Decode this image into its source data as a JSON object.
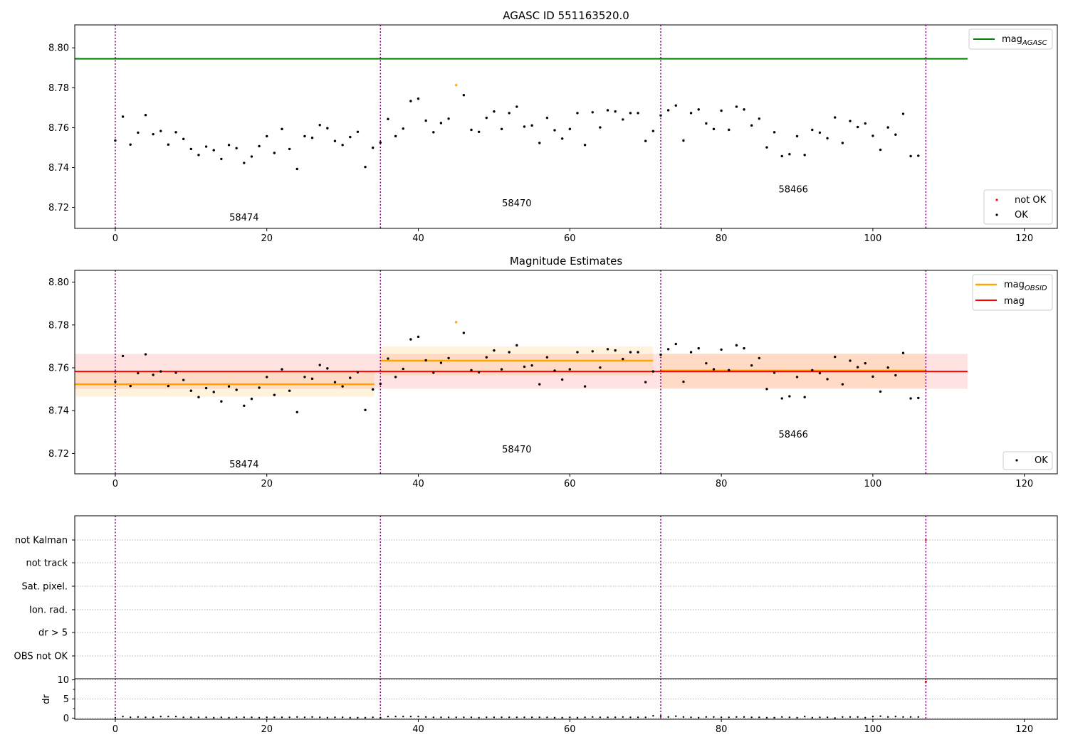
{
  "chart_data": [
    {
      "type": "scatter",
      "title": "AGASC ID 551163520.0",
      "xlim": [
        -5.35,
        124.35
      ],
      "ylim": [
        8.7095,
        8.8115
      ],
      "x_ticks": [
        "0",
        "20",
        "40",
        "60",
        "80",
        "100",
        "120"
      ],
      "y_ticks": [
        "8.72",
        "8.74",
        "8.76",
        "8.78",
        "8.80"
      ],
      "obs_boundaries": [
        0,
        35,
        72,
        107
      ],
      "obsid_labels": [
        {
          "text": "58474",
          "x": 17,
          "y": 8.7135
        },
        {
          "text": "58470",
          "x": 53,
          "y": 8.7205
        },
        {
          "text": "58466",
          "x": 89.5,
          "y": 8.7275
        }
      ],
      "lines": [
        {
          "name": "mag_AGASC",
          "color": "#008000",
          "y": 8.7945,
          "x": [
            -5.35,
            112.5
          ]
        }
      ],
      "series": [
        {
          "name": "not OK",
          "color": "#ff0000",
          "x": [],
          "y": []
        },
        {
          "name": "OK",
          "color": "#000000",
          "x": [
            0,
            1,
            2,
            3,
            4,
            5,
            6,
            7,
            8,
            9,
            10,
            11,
            12,
            13,
            14,
            15,
            16,
            17,
            18,
            19,
            20,
            21,
            22,
            23,
            24,
            25,
            26,
            27,
            28,
            29,
            30,
            31,
            32,
            33,
            34,
            35,
            36,
            37,
            38,
            39,
            40,
            41,
            42,
            43,
            44,
            46,
            47,
            48,
            49,
            50,
            51,
            52,
            53,
            54,
            55,
            56,
            57,
            58,
            59,
            60,
            61,
            62,
            63,
            64,
            65,
            66,
            67,
            68,
            69,
            70,
            71,
            72,
            73,
            74,
            75,
            76,
            77,
            78,
            79,
            80,
            81,
            82,
            83,
            84,
            85,
            86,
            87,
            88,
            89,
            90,
            91,
            92,
            93,
            94,
            95,
            96,
            97,
            98,
            99,
            100,
            101,
            102,
            103,
            104,
            105,
            106
          ],
          "y": [
            8.7535,
            8.7655,
            8.7515,
            8.7575,
            8.7663,
            8.7567,
            8.7583,
            8.7515,
            8.7577,
            8.7543,
            8.7493,
            8.7463,
            8.7505,
            8.7487,
            8.7443,
            8.7513,
            8.7497,
            8.7423,
            8.7455,
            8.7507,
            8.7557,
            8.7473,
            8.7593,
            8.7493,
            8.7393,
            8.7557,
            8.7549,
            8.7613,
            8.7597,
            8.7533,
            8.7513,
            8.7553,
            8.7579,
            8.7403,
            8.7499,
            8.7525,
            8.7643,
            8.7557,
            8.7595,
            8.7733,
            8.7745,
            8.7635,
            8.7577,
            8.7623,
            8.7645,
            8.7763,
            8.7589,
            8.7579,
            8.7649,
            8.7681,
            8.7593,
            8.7673,
            8.7705,
            8.7605,
            8.7611,
            8.7523,
            8.7649,
            8.7587,
            8.7545,
            8.7593,
            8.7673,
            8.7513,
            8.7677,
            8.7601,
            8.7687,
            8.7681,
            8.7641,
            8.7673,
            8.7673,
            8.7533,
            8.7583,
            8.7661,
            8.7687,
            8.7711,
            8.7535,
            8.7673,
            8.7691,
            8.7621,
            8.7593,
            8.7685,
            8.7589,
            8.7705,
            8.7691,
            8.7611,
            8.7645,
            8.7501,
            8.7577,
            8.7457,
            8.7467,
            8.7557,
            8.7463,
            8.7589,
            8.7575,
            8.7547,
            8.7651,
            8.7523,
            8.7633,
            8.7603,
            8.7621,
            8.7559,
            8.7489,
            8.7601,
            8.7565,
            8.7669,
            8.7457,
            8.7459
          ]
        },
        {
          "name": "mag_OBSID point",
          "color": "#ffa500",
          "x": [
            45
          ],
          "y": [
            8.7813
          ]
        }
      ]
    },
    {
      "type": "scatter",
      "title": "Magnitude Estimates",
      "xlim": [
        -5.35,
        124.35
      ],
      "ylim": [
        8.7105,
        8.8055
      ],
      "x_ticks": [
        "0",
        "20",
        "40",
        "60",
        "80",
        "100",
        "120"
      ],
      "y_ticks": [
        "8.72",
        "8.74",
        "8.76",
        "8.78",
        "8.80"
      ],
      "obs_boundaries": [
        0,
        35,
        72,
        107
      ],
      "obsid_labels": [
        {
          "text": "58474",
          "x": 17,
          "y": 8.7135
        },
        {
          "text": "58470",
          "x": 53,
          "y": 8.7205
        },
        {
          "text": "58466",
          "x": 89.5,
          "y": 8.7275
        }
      ],
      "lines": [
        {
          "name": "mag",
          "color": "#ff0000",
          "y": 8.7583,
          "x": [
            -5.35,
            112.5
          ],
          "band": [
            8.7502,
            8.7665
          ]
        },
        {
          "name": "mag_OBSID",
          "color": "#ffa500",
          "y": 8.7523,
          "x": [
            -5.35,
            34.2
          ],
          "band": [
            8.7465,
            8.7583
          ]
        },
        {
          "name": "mag_OBSID",
          "color": "#ffa500",
          "y": 8.7633,
          "x": [
            35,
            71
          ],
          "band": [
            8.7565,
            8.77
          ]
        },
        {
          "name": "mag_OBSID",
          "color": "#ffa500",
          "y": 8.7587,
          "x": [
            72,
            107
          ],
          "band": [
            8.7505,
            8.7667
          ]
        }
      ],
      "series": [
        {
          "name": "OK",
          "color": "#000000",
          "same_points_as_panel": 0
        }
      ]
    },
    {
      "type": "scatter",
      "title": "",
      "xlim": [
        -5.35,
        124.35
      ],
      "categories": [
        "not Kalman",
        "not track",
        "Sat. pixel.",
        "Ion. rad.",
        "dr > 5",
        "OBS not OK"
      ],
      "obs_boundaries": [
        0,
        35,
        72,
        107
      ],
      "flag_points": [
        {
          "x": 107,
          "category": "not Kalman",
          "color": "#ff0000"
        }
      ]
    },
    {
      "type": "scatter",
      "title": "",
      "ylabel": "dr",
      "xlim": [
        -5.35,
        124.35
      ],
      "ylim": [
        -0.3,
        10.3
      ],
      "x_ticks": [
        "0",
        "20",
        "40",
        "60",
        "80",
        "100",
        "120"
      ],
      "y_ticks": [
        "0",
        "5",
        "10"
      ],
      "obs_boundaries": [
        0,
        35,
        72,
        107
      ],
      "series": [
        {
          "name": "dr",
          "color": "#000000",
          "y": [
            0.1,
            0.4,
            0.2,
            0.3,
            0.2,
            0.2,
            0.4,
            0.4,
            0.4,
            0.2,
            0.2,
            0.2,
            0.2,
            0.1,
            0.2,
            0.1,
            0.2,
            0.2,
            0.2,
            0.1,
            0.2,
            0.2,
            0.2,
            0.2,
            0.3,
            0.2,
            0.3,
            0.2,
            0.1,
            0.2,
            0.2,
            0.1,
            0.1,
            0.1,
            0.2,
            0.1,
            0.4,
            0.4,
            0.4,
            0.4,
            0.4,
            0.3,
            0.2,
            0.2,
            0.2,
            0.2,
            0.2,
            0.2,
            0.1,
            0.2,
            0.2,
            0.2,
            0.2,
            0.2,
            0.2,
            0.2,
            0.2,
            0.2,
            0.1,
            0.1,
            0.2,
            0.1,
            0.2,
            0.3,
            0.2,
            0.2,
            0.2,
            0.3,
            0.2,
            0.2,
            0.2,
            0.6,
            0.5,
            0.3,
            0.5,
            0.3,
            0.2,
            0.1,
            0.3,
            0.3,
            0.2,
            0.2,
            0.3,
            0.3,
            0.2,
            0.2,
            0.1,
            0.1,
            0.3,
            0.2,
            0.1,
            0.4,
            0.1,
            0.2,
            0.2,
            0.0,
            0.3,
            0.3,
            0.3,
            0.1,
            0.4,
            0.5,
            0.3,
            0.4,
            0.3,
            0.3,
            0.3
          ],
          "outliers": [
            {
              "x": 107,
              "y": 9.5,
              "color": "#ff0000"
            }
          ]
        }
      ]
    }
  ],
  "legends": {
    "panel1_top": {
      "line_base": "mag",
      "line_sub": "AGASC"
    },
    "panel1_bottom": {
      "not_ok": "not OK",
      "ok": "OK"
    },
    "panel2_top": {
      "obsid_base": "mag",
      "obsid_sub": "OBSID",
      "mag": "mag"
    },
    "panel2_bottom": {
      "ok": "OK"
    }
  }
}
